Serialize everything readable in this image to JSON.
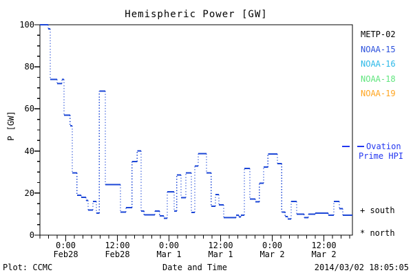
{
  "title": "Hemispheric Power [GW]",
  "axes": {
    "y_label": "P [GW]",
    "x_label": "Date and Time",
    "y_ticks": [
      {
        "value": 0,
        "label": "0"
      },
      {
        "value": 20,
        "label": "20"
      },
      {
        "value": 40,
        "label": "40"
      },
      {
        "value": 60,
        "label": "60"
      },
      {
        "value": 80,
        "label": "80"
      },
      {
        "value": 100,
        "label": "100"
      }
    ],
    "x_ticks": [
      {
        "hours": 6,
        "time": "0:00",
        "date": "Feb28"
      },
      {
        "hours": 18,
        "time": "12:00",
        "date": "Feb28"
      },
      {
        "hours": 30,
        "time": "0:00",
        "date": "Mar 1"
      },
      {
        "hours": 42,
        "time": "12:00",
        "date": "Mar 1"
      },
      {
        "hours": 54,
        "time": "0:00",
        "date": "Mar 2"
      },
      {
        "hours": 66,
        "time": "12:00",
        "date": "Mar 2"
      }
    ]
  },
  "legend": {
    "satellites": [
      {
        "label": "METP-02",
        "color": "#000000"
      },
      {
        "label": "NOAA-15",
        "color": "#2b50dc"
      },
      {
        "label": "NOAA-16",
        "color": "#2ab9e8"
      },
      {
        "label": "NOAA-18",
        "color": "#5fe57d"
      },
      {
        "label": "NOAA-19",
        "color": "#ffa520"
      }
    ],
    "model": {
      "line1": "Ovation",
      "line2": "Prime HPI",
      "color": "#2236f0"
    },
    "markers": [
      {
        "symbol_label": "+ south"
      },
      {
        "symbol_label": "* north"
      }
    ]
  },
  "footer": {
    "plot_credit": "Plot: CCMC",
    "timestamp": "2014/03/02 18:05:05"
  },
  "chart_data": {
    "type": "line",
    "subtype": "step-histogram",
    "title": "Hemispheric Power [GW]",
    "xlabel": "Date and Time",
    "ylabel": "P [GW]",
    "ylim": [
      0,
      100
    ],
    "y_major_tick": 20,
    "y_minor_tick": 5,
    "x_major_tick_hours": 12,
    "x_minor_tick_hours": 2,
    "grid": false,
    "x_start_label": "Feb 27 18:00",
    "x_end_label": "Mar 2 ~18:30",
    "x_total_hours": 72.6,
    "line_color": "#1a45d6",
    "series": [
      {
        "name": "Ovation Prime HPI",
        "units": "GW",
        "steps_hours_value": [
          [
            0,
            100
          ],
          [
            1.9,
            98
          ],
          [
            2.4,
            74
          ],
          [
            4.0,
            72
          ],
          [
            5.1,
            74
          ],
          [
            5.6,
            57
          ],
          [
            7.0,
            52
          ],
          [
            7.5,
            29.5
          ],
          [
            8.6,
            19
          ],
          [
            9.6,
            18
          ],
          [
            10.7,
            16.5
          ],
          [
            11.2,
            12
          ],
          [
            12.3,
            16
          ],
          [
            13.1,
            10.5
          ],
          [
            13.8,
            68.5
          ],
          [
            15.2,
            24
          ],
          [
            18.7,
            11
          ],
          [
            20.0,
            13
          ],
          [
            21.4,
            35
          ],
          [
            22.6,
            40
          ],
          [
            23.5,
            11.5
          ],
          [
            24.2,
            9.7
          ],
          [
            26.7,
            11.5
          ],
          [
            27.8,
            9.1
          ],
          [
            28.8,
            8
          ],
          [
            29.6,
            20.6
          ],
          [
            31.2,
            11.5
          ],
          [
            31.8,
            28.6
          ],
          [
            32.8,
            17.8
          ],
          [
            33.9,
            29.5
          ],
          [
            35.2,
            10.8
          ],
          [
            36.0,
            32.9
          ],
          [
            36.8,
            38.8
          ],
          [
            38.7,
            29.5
          ],
          [
            39.8,
            13.7
          ],
          [
            40.8,
            19.2
          ],
          [
            41.6,
            14.3
          ],
          [
            42.7,
            8.3
          ],
          [
            45.6,
            9.4
          ],
          [
            46.2,
            8.6
          ],
          [
            46.7,
            9.4
          ],
          [
            47.5,
            31.7
          ],
          [
            48.8,
            17.2
          ],
          [
            50.1,
            15.9
          ],
          [
            51.0,
            24.6
          ],
          [
            52.0,
            32.3
          ],
          [
            53.0,
            38.5
          ],
          [
            55.2,
            34
          ],
          [
            56.2,
            11
          ],
          [
            57.0,
            8.8
          ],
          [
            57.6,
            7.7
          ],
          [
            58.4,
            16
          ],
          [
            59.7,
            9.9
          ],
          [
            61.4,
            8.3
          ],
          [
            62.4,
            9.9
          ],
          [
            64.0,
            10.5
          ],
          [
            67.0,
            9.4
          ],
          [
            68.3,
            16
          ],
          [
            69.6,
            12.6
          ],
          [
            70.4,
            9.4
          ],
          [
            72.6,
            9.4
          ]
        ]
      }
    ],
    "legend_entries": [
      "METP-02",
      "NOAA-15",
      "NOAA-16",
      "NOAA-18",
      "NOAA-19",
      "Ovation Prime HPI",
      "+ south",
      "* north"
    ],
    "legend_position": "right"
  }
}
